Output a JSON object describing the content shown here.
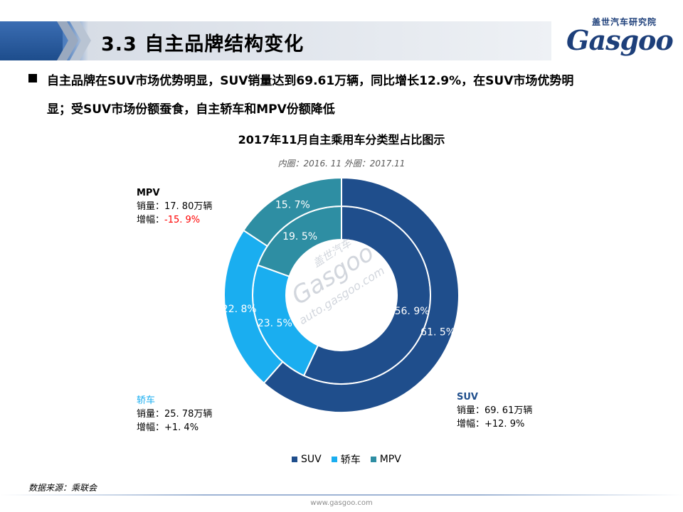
{
  "header": {
    "section_title": "3.3 自主品牌结构变化",
    "logo_cn": "盖世汽车研究院",
    "logo_text": "Gasgoo"
  },
  "bullet": {
    "line1": "自主品牌在SUV市场优势明显，SUV销量达到69.61万辆，同比增长12.9%，在SUV市场优势明",
    "line2": "显；受SUV市场份额蚕食，自主轿车和MPV份额降低"
  },
  "chart_data": {
    "type": "donut",
    "title": "2017年11月自主乘用车分类型占比图示",
    "subtitle": "内圈：2016. 11   外圈：2017.11",
    "categories": [
      "SUV",
      "轿车",
      "MPV"
    ],
    "colors": {
      "SUV": "#1f4e8c",
      "轿车": "#1aaef0",
      "MPV": "#2e8ea3"
    },
    "series": [
      {
        "name": "2016. 11",
        "ring": "inner",
        "values": [
          56.9,
          23.5,
          19.5
        ],
        "labels": [
          "56. 9%",
          "23. 5%",
          "19. 5%"
        ]
      },
      {
        "name": "2017.11",
        "ring": "outer",
        "values": [
          61.5,
          22.8,
          15.7
        ],
        "labels": [
          "61. 5%",
          "22. 8%",
          "15. 7%"
        ]
      }
    ],
    "legend_position": "bottom"
  },
  "annotations": {
    "mpv": {
      "title": "MPV",
      "sales": "销量：17. 80万辆",
      "growth_label": "增幅：",
      "growth_value": "-15. 9%"
    },
    "sedan": {
      "title": "轿车",
      "sales": "销量：25. 78万辆",
      "growth": "增幅：+1. 4%"
    },
    "suv": {
      "title": "SUV",
      "sales": "销量：69. 61万辆",
      "growth": "增幅：+12. 9%"
    }
  },
  "watermark": {
    "cn": "盖世汽车",
    "brand": "Gasgoo",
    "url": "auto.gasgoo.com"
  },
  "legend": {
    "items": [
      "SUV",
      "轿车",
      "MPV"
    ]
  },
  "source": "数据来源：乘联会",
  "footer_url": "www.gasgoo.com"
}
